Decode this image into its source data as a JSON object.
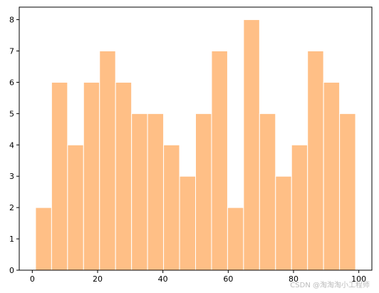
{
  "chart_data": {
    "type": "bar",
    "bin_edges": [
      1,
      5.9,
      10.8,
      15.7,
      20.6,
      25.5,
      30.4,
      35.3,
      40.2,
      45.1,
      50,
      54.9,
      59.8,
      64.7,
      69.6,
      74.5,
      79.4,
      84.3,
      89.2,
      94.1,
      99
    ],
    "values": [
      2,
      6,
      4,
      6,
      7,
      6,
      5,
      5,
      4,
      3,
      5,
      7,
      2,
      8,
      5,
      3,
      4,
      7,
      6,
      5
    ],
    "xlim": [
      -4,
      104
    ],
    "ylim": [
      0,
      8.4
    ],
    "x_ticks": [
      0,
      20,
      40,
      60,
      80,
      100
    ],
    "y_ticks": [
      0,
      1,
      2,
      3,
      4,
      5,
      6,
      7,
      8
    ],
    "title": "",
    "xlabel": "",
    "ylabel": "",
    "grid": false,
    "bar_color": "#ffbf86",
    "edge_color": "#ffffff"
  },
  "watermark": "CSDN @淘淘淘小工程师"
}
